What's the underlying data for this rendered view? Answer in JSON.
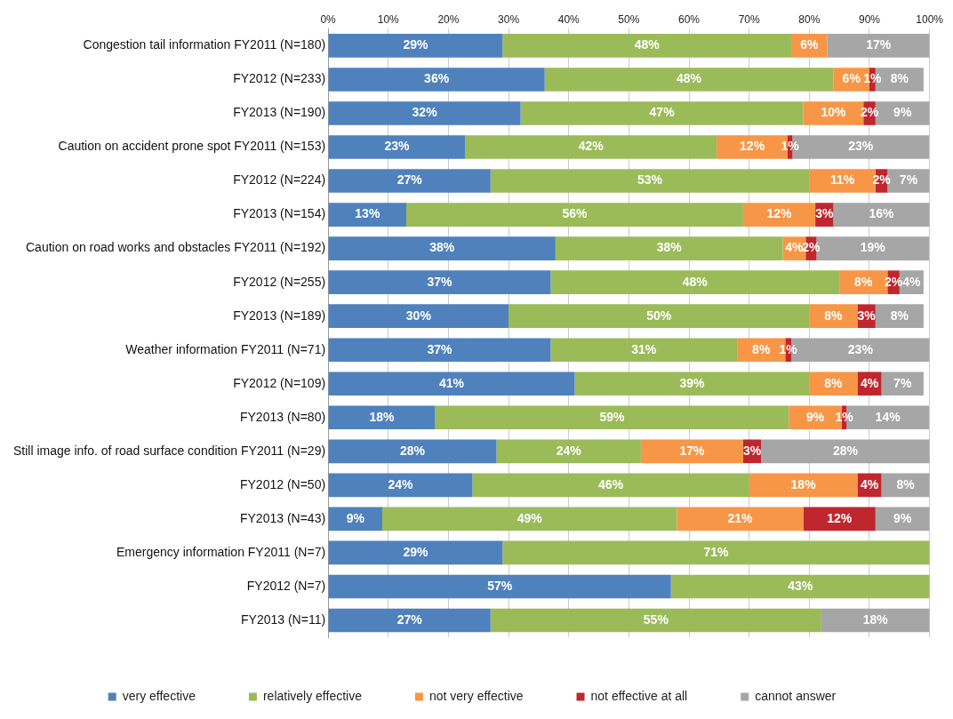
{
  "chart_data": {
    "type": "bar",
    "orientation": "horizontal",
    "stacked": true,
    "grid": "x",
    "legend": "bottom",
    "categories": [
      "Congestion tail information FY2011 (N=180)",
      "FY2012 (N=233)",
      "FY2013 (N=190)",
      "Caution on accident prone spot FY2011 (N=153)",
      "FY2012 (N=224)",
      "FY2013 (N=154)",
      "Caution on road works and obstacles FY2011 (N=192)",
      "FY2012 (N=255)",
      "FY2013 (N=189)",
      "Weather information FY2011 (N=71)",
      "FY2012 (N=109)",
      "FY2013 (N=80)",
      "Still image info. of road surface condition FY2011 (N=29)",
      "FY2012 (N=50)",
      "FY2013 (N=43)",
      "Emergency information FY2011 (N=7)",
      "FY2012 (N=7)",
      "FY2013 (N=11)"
    ],
    "xlim": [
      0,
      100
    ],
    "xticks": [
      {
        "value": 0,
        "label": "0%"
      },
      {
        "value": 10,
        "label": "10%"
      },
      {
        "value": 20,
        "label": "20%"
      },
      {
        "value": 30,
        "label": "30%"
      },
      {
        "value": 40,
        "label": "40%"
      },
      {
        "value": 50,
        "label": "50%"
      },
      {
        "value": 60,
        "label": "60%"
      },
      {
        "value": 70,
        "label": "70%"
      },
      {
        "value": 80,
        "label": "80%"
      },
      {
        "value": 90,
        "label": "90%"
      },
      {
        "value": 100,
        "label": "100%"
      }
    ],
    "series": [
      {
        "name": "very effective",
        "color": "#4f81bd",
        "values": [
          29,
          36,
          32,
          22.8,
          27,
          13,
          37.8,
          37,
          30,
          37,
          41,
          17.8,
          28,
          24,
          9,
          29,
          57,
          27
        ],
        "value_labels": [
          "29%",
          "36%",
          "32%",
          "23%",
          "27%",
          "13%",
          "38%",
          "37%",
          "30%",
          "37%",
          "41%",
          "18%",
          "28%",
          "24%",
          "9%",
          "29%",
          "57%",
          "27%"
        ]
      },
      {
        "name": "relatively effective",
        "color": "#9bbb59",
        "values": [
          48,
          48,
          47,
          41.8,
          53,
          56,
          37.8,
          48,
          50,
          31,
          39,
          58.8,
          24,
          46,
          49,
          71,
          43,
          55
        ],
        "value_labels": [
          "48%",
          "48%",
          "47%",
          "42%",
          "53%",
          "56%",
          "38%",
          "48%",
          "50%",
          "31%",
          "39%",
          "59%",
          "24%",
          "46%",
          "49%",
          "71%",
          "43%",
          "55%"
        ]
      },
      {
        "name": "not very effective",
        "color": "#f79646",
        "values": [
          6,
          6,
          10,
          11.8,
          11,
          12,
          3.8,
          8,
          8,
          8,
          8,
          8.8,
          17,
          18,
          21,
          null,
          null,
          null
        ],
        "value_labels": [
          "6%",
          "6%",
          "10%",
          "12%",
          "11%",
          "12%",
          "4%",
          "8%",
          "8%",
          "8%",
          "8%",
          "9%",
          "17%",
          "18%",
          "21%",
          null,
          null,
          null
        ]
      },
      {
        "name": "not effective at all",
        "color": "#c0262d",
        "values": [
          null,
          1,
          2,
          0.8,
          2,
          3,
          1.8,
          2,
          3,
          1,
          4,
          0.8,
          3,
          4,
          12,
          null,
          null,
          null
        ],
        "value_labels": [
          null,
          "1%",
          "2%",
          "1%",
          "2%",
          "3%",
          "2%",
          "2%",
          "3%",
          "1%",
          "4%",
          "1%",
          "3%",
          "4%",
          "12%",
          null,
          null,
          null
        ]
      },
      {
        "name": "cannot answer",
        "color": "#a6a6a6",
        "values": [
          17,
          8,
          9,
          22.7,
          7,
          16,
          18.7,
          4,
          8,
          23,
          7,
          13.7,
          28,
          8,
          9,
          null,
          null,
          18
        ],
        "value_labels": [
          "17%",
          "8%",
          "9%",
          "23%",
          "7%",
          "16%",
          "19%",
          "4%",
          "8%",
          "23%",
          "7%",
          "14%",
          "28%",
          "8%",
          "9%",
          null,
          null,
          "18%"
        ]
      }
    ]
  }
}
